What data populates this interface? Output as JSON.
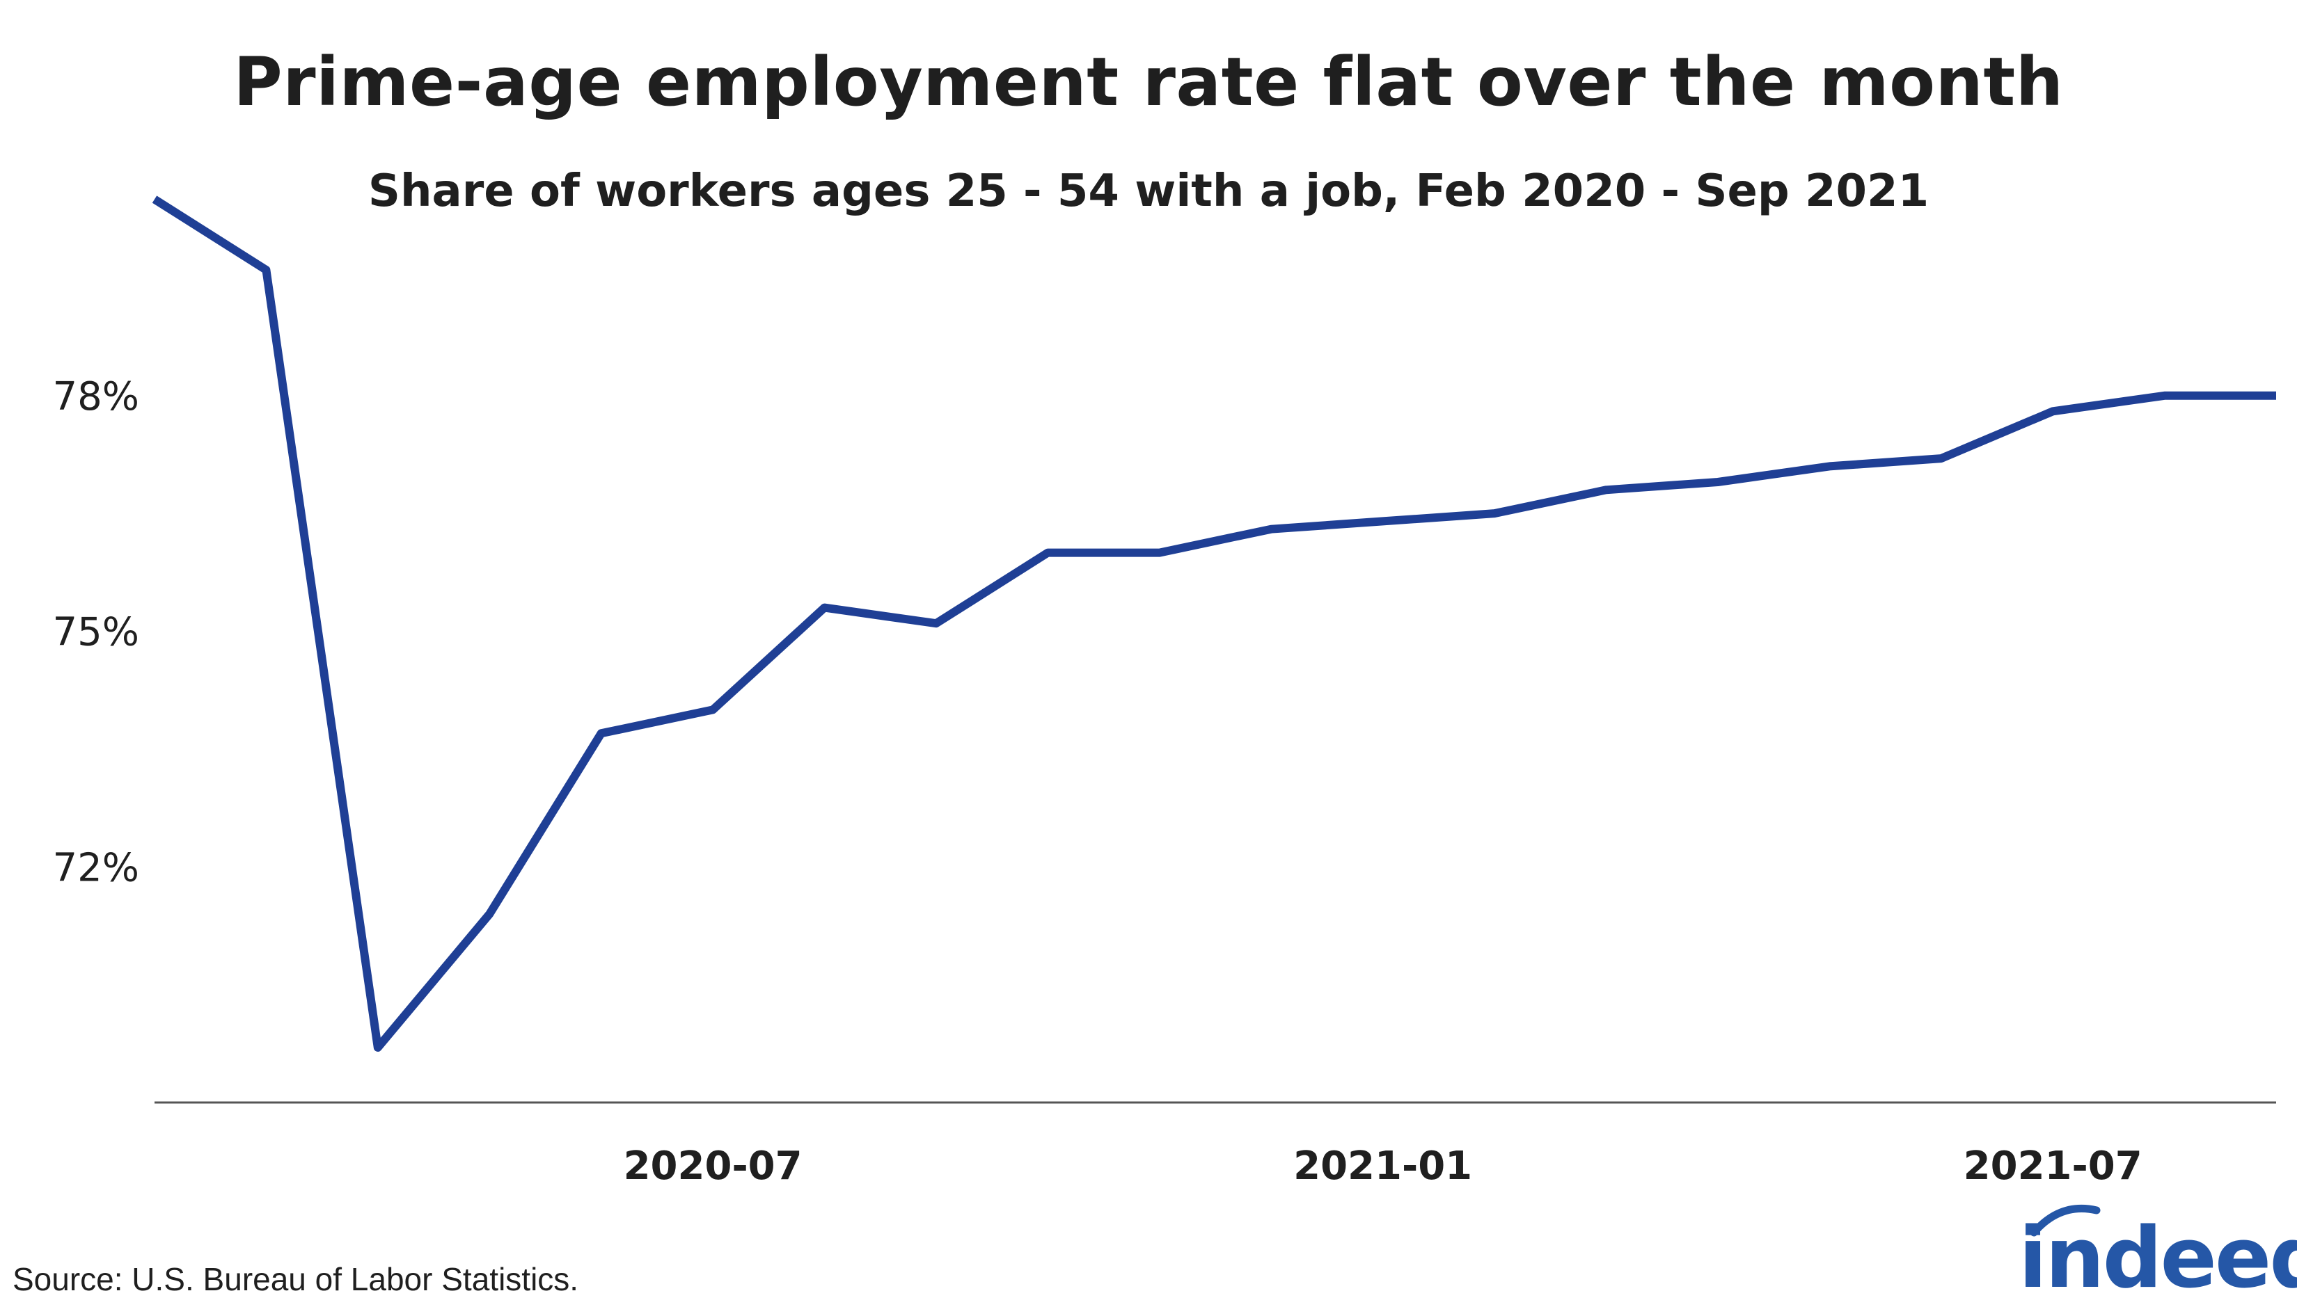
{
  "title": "Prime-age employment rate flat over the month",
  "subtitle": "Share of workers ages 25 - 54 with a job, Feb 2020 - Sep 2021",
  "source": "Source: U.S. Bureau of Labor Statistics.",
  "logo_text": "indeed",
  "colors": {
    "line": "#1f3f95",
    "axis": "#555555",
    "text": "#1f1f1f",
    "brand": "#2557a7"
  },
  "chart_data": {
    "type": "line",
    "x": [
      "2020-02",
      "2020-03",
      "2020-04",
      "2020-05",
      "2020-06",
      "2020-07",
      "2020-08",
      "2020-09",
      "2020-10",
      "2020-11",
      "2020-12",
      "2021-01",
      "2021-02",
      "2021-03",
      "2021-04",
      "2021-05",
      "2021-06",
      "2021-07",
      "2021-08",
      "2021-09"
    ],
    "series": [
      {
        "values": [
          80.5,
          79.6,
          69.7,
          71.4,
          73.7,
          74.0,
          75.3,
          75.1,
          76.0,
          76.0,
          76.3,
          76.4,
          76.5,
          76.8,
          76.9,
          77.1,
          77.2,
          77.8,
          78.0,
          78.0
        ]
      }
    ],
    "xticks": [
      "2020-07",
      "2021-01",
      "2021-07"
    ],
    "yticks": [
      72,
      75,
      78
    ],
    "ytick_labels": [
      "72%",
      "75%",
      "78%"
    ],
    "ylim": [
      69.0,
      81.0
    ],
    "xlabel": "",
    "ylabel": "",
    "grid": false,
    "legend": "none"
  }
}
